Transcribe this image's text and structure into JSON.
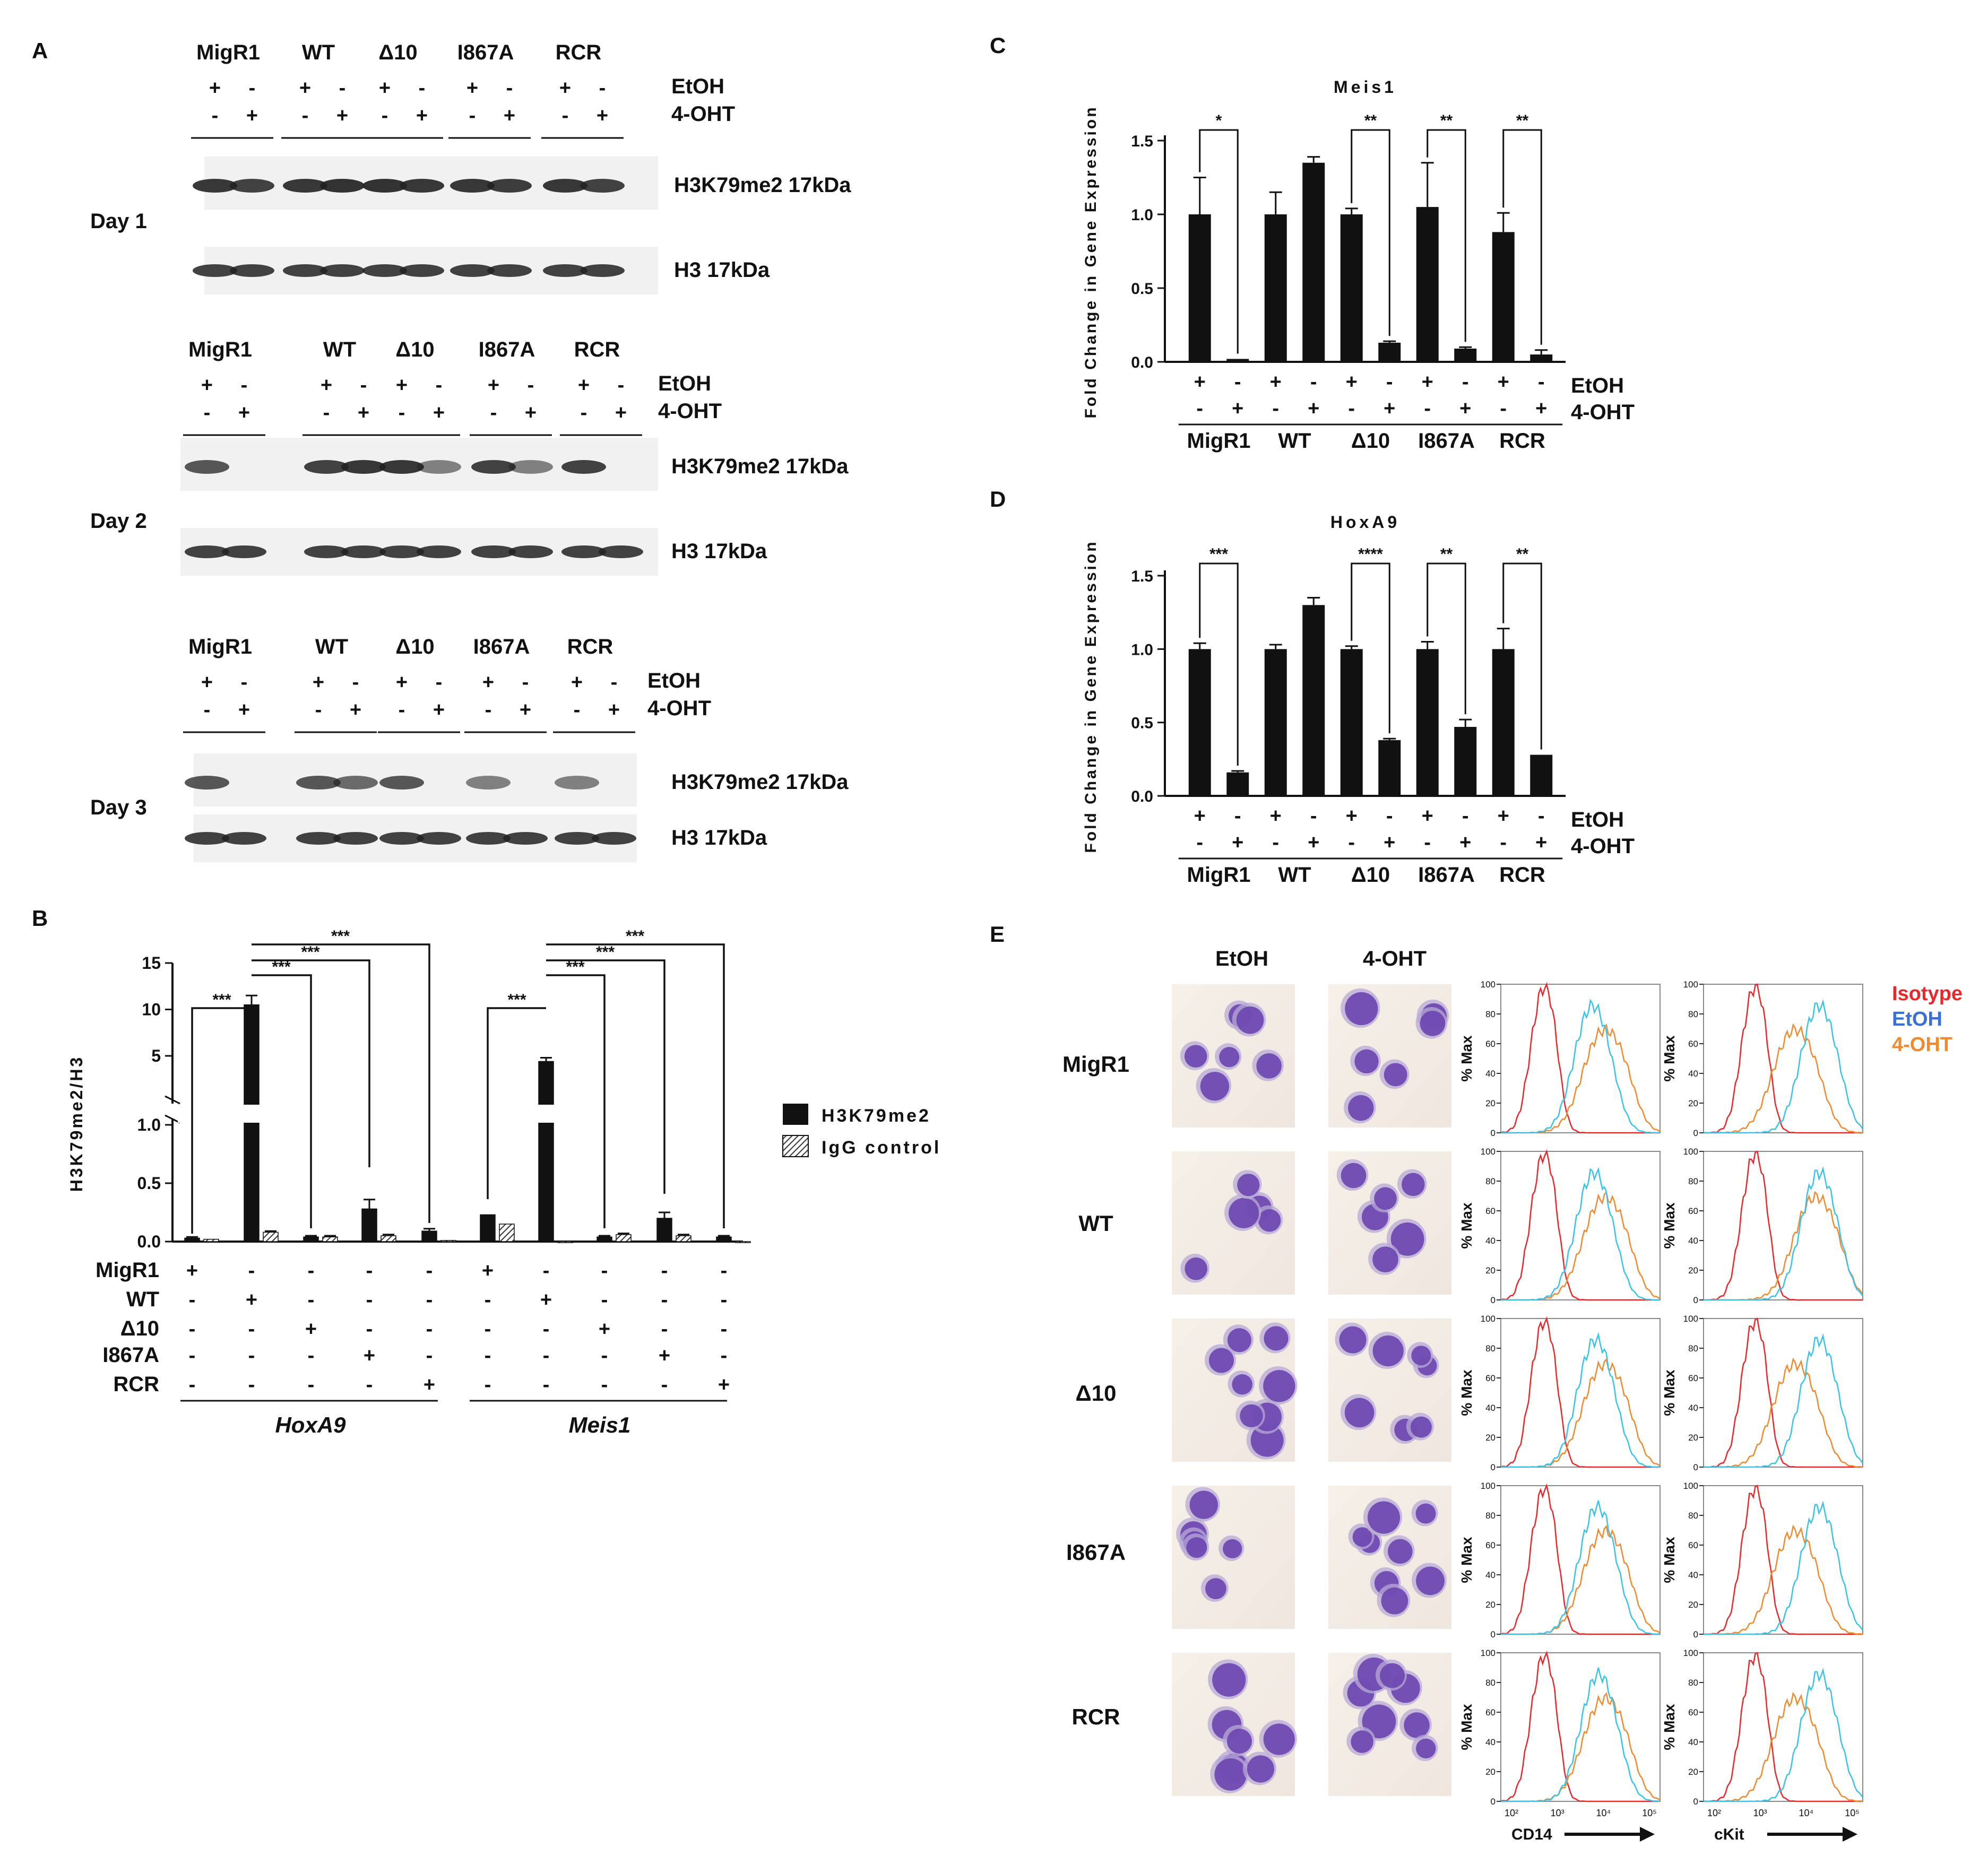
{
  "panels": {
    "A": "A",
    "B": "B",
    "C": "C",
    "D": "D",
    "E": "E"
  },
  "lanes": [
    "MigR1",
    "WT",
    "Δ10",
    "I867A",
    "RCR"
  ],
  "treatments": {
    "etoh": "EtOH",
    "ohdt": "4-OHT",
    "plus": "+",
    "minus": "-"
  },
  "blot": {
    "days": [
      "Day 1",
      "Day 2",
      "Day 3"
    ],
    "h3k79_label": "H3K79me2 17kDa",
    "h3_label": "H3 17kDa",
    "h3k79_signal": [
      [
        0.9,
        0.85,
        0.9,
        0.92,
        0.92,
        0.9,
        0.9,
        0.88,
        0.9,
        0.85
      ],
      [
        0.75,
        0.0,
        0.85,
        0.9,
        0.9,
        0.55,
        0.85,
        0.55,
        0.85,
        0.0
      ],
      [
        0.75,
        0.0,
        0.75,
        0.65,
        0.75,
        0.0,
        0.55,
        0.0,
        0.55,
        0.0
      ]
    ]
  },
  "chart_data": [
    {
      "panel": "B",
      "type": "bar",
      "ylabel": "H3K79me2/H3",
      "yticks_lower": [
        "0.0",
        "0.5",
        "1.0"
      ],
      "yticks_upper": [
        "5",
        "10",
        "15"
      ],
      "y_break": 1.0,
      "groups": [
        "HoxA9",
        "Meis1"
      ],
      "categories": [
        "MigR1",
        "WT",
        "Δ10",
        "I867A",
        "RCR"
      ],
      "series": [
        {
          "name": "H3K79me2",
          "color": "#111111",
          "pattern": "solid",
          "values": {
            "HoxA9": [
              0.03,
              10.5,
              0.04,
              0.28,
              0.09
            ],
            "Meis1": [
              0.23,
              4.4,
              0.04,
              0.2,
              0.04
            ]
          },
          "errors": {
            "HoxA9": [
              0.01,
              1.0,
              0.01,
              0.08,
              0.02
            ],
            "Meis1": [
              0.0,
              0.4,
              0.01,
              0.05,
              0.01
            ]
          }
        },
        {
          "name": "IgG control",
          "color": "#777777",
          "pattern": "hatched",
          "values": {
            "HoxA9": [
              0.02,
              0.08,
              0.04,
              0.05,
              0.01
            ],
            "Meis1": [
              0.15,
              0.0,
              0.06,
              0.05,
              0.0
            ]
          },
          "errors": {
            "HoxA9": [
              0.0,
              0.01,
              0.01,
              0.01,
              0.0
            ],
            "Meis1": [
              0.0,
              0.0,
              0.01,
              0.01,
              0.0
            ]
          }
        }
      ],
      "sig": "***"
    },
    {
      "panel": "C",
      "type": "bar",
      "title": "Meis1",
      "ylabel": "Fold Change in Gene Expression",
      "ylim": [
        0,
        1.5
      ],
      "yticks": [
        "0.0",
        "0.5",
        "1.0",
        "1.5"
      ],
      "pairs": [
        "MigR1",
        "WT",
        "Δ10",
        "I867A",
        "RCR"
      ],
      "values": [
        1.0,
        0.02,
        1.0,
        1.35,
        1.0,
        0.13,
        1.05,
        0.09,
        0.88,
        0.05
      ],
      "errors": [
        0.25,
        0.0,
        0.15,
        0.04,
        0.04,
        0.01,
        0.3,
        0.01,
        0.13,
        0.03
      ],
      "significance": [
        "*",
        "",
        "**",
        "**",
        "**"
      ]
    },
    {
      "panel": "D",
      "type": "bar",
      "title": "HoxA9",
      "ylabel": "Fold Change in Gene Expression",
      "ylim": [
        0,
        1.5
      ],
      "yticks": [
        "0.0",
        "0.5",
        "1.0",
        "1.5"
      ],
      "pairs": [
        "MigR1",
        "WT",
        "Δ10",
        "I867A",
        "RCR"
      ],
      "values": [
        1.0,
        0.16,
        1.0,
        1.3,
        1.0,
        0.38,
        1.0,
        0.47,
        1.0,
        0.28
      ],
      "errors": [
        0.04,
        0.01,
        0.03,
        0.05,
        0.02,
        0.01,
        0.05,
        0.05,
        0.14,
        0.0
      ],
      "significance": [
        "***",
        "",
        "****",
        "**",
        "**"
      ]
    }
  ],
  "panelB": {
    "legend": [
      "H3K79me2",
      "IgG control"
    ],
    "groups": [
      "HoxA9",
      "Meis1"
    ],
    "sig": "***"
  },
  "panelE": {
    "col_etoh": "EtOH",
    "col_ohdt": "4-OHT",
    "rows": [
      "MigR1",
      "WT",
      "Δ10",
      "I867A",
      "RCR"
    ],
    "legend": [
      {
        "label": "Isotype",
        "color": "#e8282a"
      },
      {
        "label": "EtOH",
        "color": "#3a6fd8"
      },
      {
        "label": "4-OHT",
        "color": "#f08a2e"
      }
    ],
    "yaxis": "% Max",
    "yticks": [
      "0",
      "20",
      "40",
      "60",
      "80",
      "100"
    ],
    "xticks": [
      "10²",
      "10³",
      "10⁴",
      "10⁵"
    ],
    "xlabel_cd14": "CD14",
    "xlabel_ckit": "cKit"
  }
}
